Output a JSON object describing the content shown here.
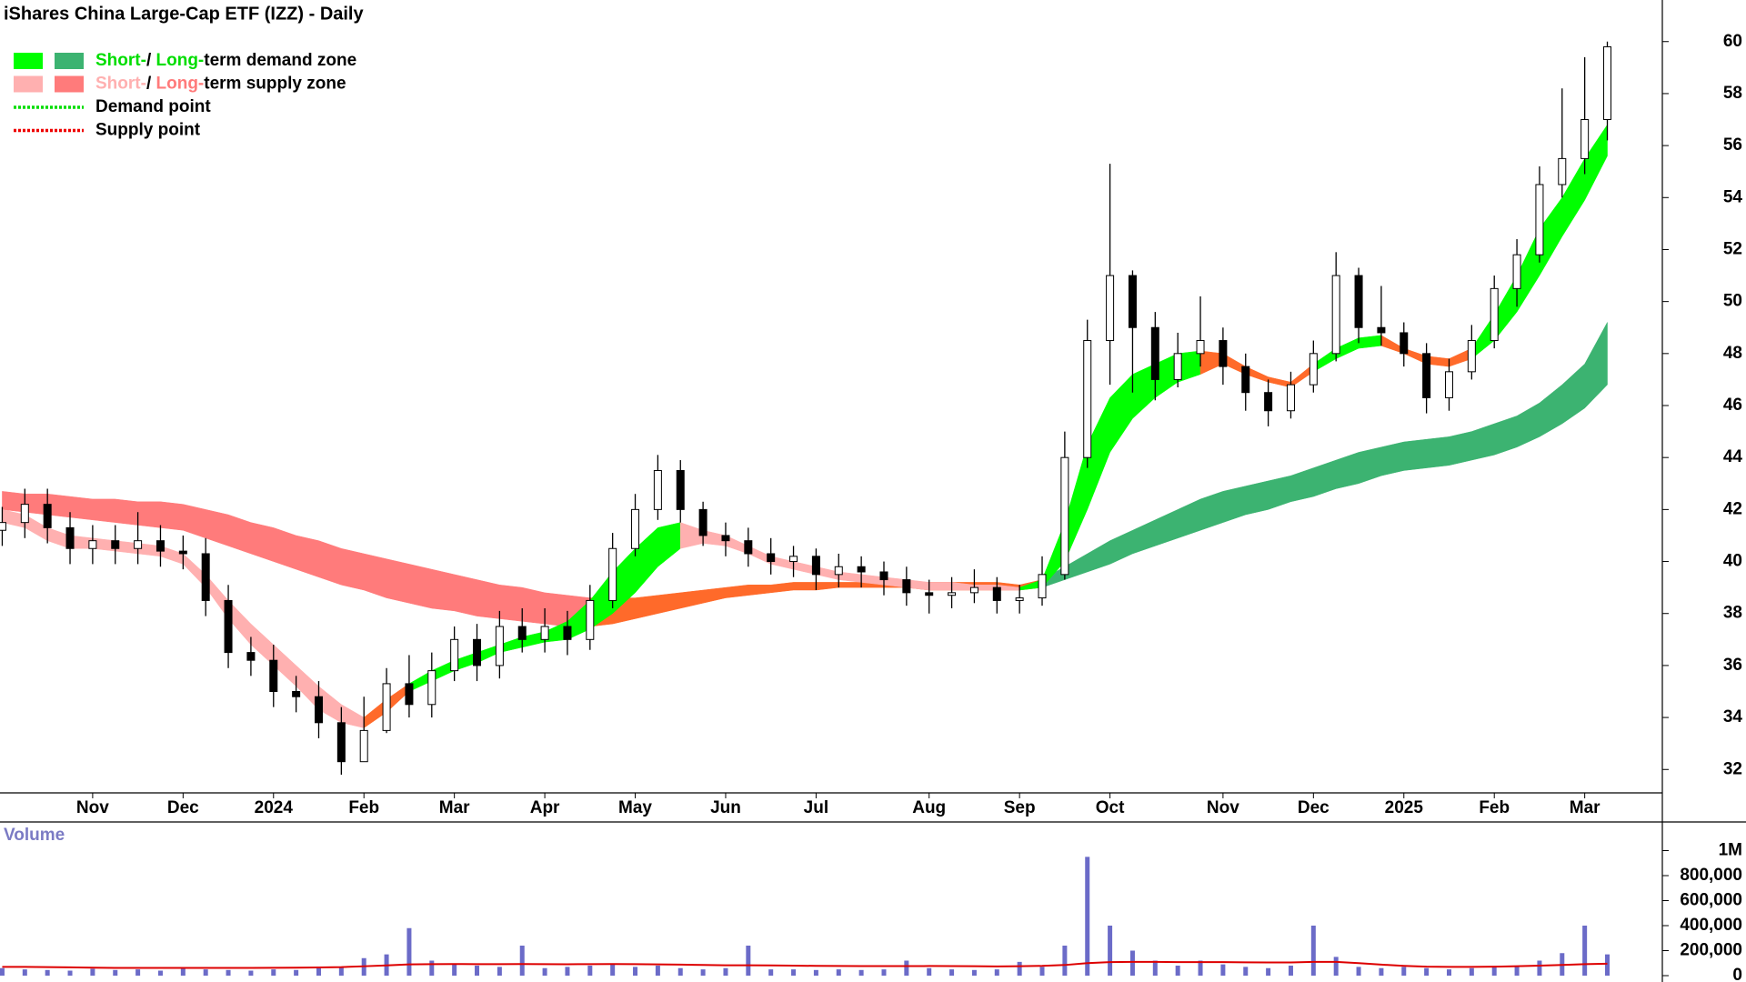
{
  "chart_data": [
    {
      "type": "candlestick",
      "title": "iShares China Large-Cap ETF (IZZ) - Daily",
      "categories": [
        null,
        null,
        null,
        null,
        "Nov",
        null,
        null,
        null,
        "Dec",
        null,
        null,
        null,
        "2024",
        null,
        null,
        null,
        "Feb",
        null,
        null,
        null,
        "Mar",
        null,
        null,
        null,
        "Apr",
        null,
        null,
        null,
        "May",
        null,
        null,
        null,
        "Jun",
        null,
        null,
        null,
        "Jul",
        null,
        null,
        null,
        null,
        "Aug",
        null,
        null,
        null,
        "Sep",
        null,
        null,
        null,
        "Oct",
        null,
        null,
        null,
        null,
        "Nov",
        null,
        null,
        null,
        "Dec",
        null,
        null,
        null,
        "2025",
        null,
        null,
        null,
        "Feb",
        null,
        null,
        null,
        "Mar",
        null
      ],
      "open": [
        41.2,
        41.5,
        42.2,
        41.3,
        40.5,
        40.8,
        40.5,
        40.8,
        40.4,
        40.3,
        38.5,
        36.5,
        36.2,
        35.0,
        34.8,
        33.8,
        32.3,
        33.5,
        35.3,
        34.5,
        35.8,
        37.0,
        36.0,
        37.5,
        37.0,
        37.5,
        37.0,
        38.5,
        40.5,
        42.0,
        43.5,
        42.0,
        41.0,
        40.8,
        40.3,
        40.0,
        40.2,
        39.5,
        39.8,
        39.6,
        39.3,
        38.8,
        38.7,
        38.8,
        39.0,
        38.5,
        38.6,
        39.5,
        44.0,
        48.5,
        51.0,
        49.0,
        47.0,
        48.0,
        48.5,
        47.5,
        46.5,
        45.8,
        46.8,
        48.0,
        51.0,
        49.0,
        48.8,
        48.0,
        46.3,
        47.3,
        48.5,
        50.5,
        51.8,
        54.5,
        55.5,
        57.0
      ],
      "high": [
        42.1,
        42.8,
        42.8,
        41.9,
        41.4,
        41.4,
        41.9,
        41.4,
        41.0,
        40.9,
        39.1,
        37.1,
        36.8,
        35.6,
        35.4,
        34.4,
        34.8,
        35.9,
        36.4,
        36.5,
        37.5,
        37.6,
        38.1,
        38.2,
        38.2,
        38.1,
        39.1,
        41.1,
        42.6,
        44.1,
        43.9,
        42.3,
        41.5,
        41.3,
        40.9,
        40.6,
        40.5,
        40.3,
        40.2,
        40.0,
        39.8,
        39.3,
        39.4,
        39.7,
        39.4,
        39.1,
        40.2,
        45.0,
        49.3,
        55.3,
        51.2,
        49.6,
        48.8,
        50.2,
        49.0,
        48.0,
        47.0,
        47.3,
        48.5,
        51.9,
        51.3,
        50.6,
        49.2,
        48.4,
        47.8,
        49.1,
        51.0,
        52.4,
        55.2,
        58.2,
        59.4,
        60.0
      ],
      "low": [
        40.6,
        40.9,
        40.7,
        39.9,
        39.9,
        39.9,
        39.9,
        39.8,
        39.7,
        37.9,
        35.9,
        35.6,
        34.4,
        34.2,
        33.2,
        31.8,
        32.6,
        33.4,
        34.0,
        34.0,
        35.4,
        35.4,
        35.5,
        36.5,
        36.5,
        36.4,
        36.6,
        38.2,
        40.2,
        41.6,
        41.5,
        40.6,
        40.2,
        39.8,
        39.5,
        39.4,
        38.9,
        39.0,
        39.0,
        38.7,
        38.3,
        38.0,
        38.2,
        38.4,
        38.0,
        38.0,
        38.3,
        39.3,
        43.6,
        46.8,
        46.5,
        46.2,
        46.7,
        47.5,
        46.8,
        45.8,
        45.2,
        45.5,
        46.5,
        47.7,
        48.4,
        48.3,
        47.5,
        45.7,
        45.8,
        47.0,
        48.2,
        49.8,
        51.5,
        54.0,
        54.9,
        56.2
      ],
      "close": [
        41.5,
        42.2,
        41.3,
        40.5,
        40.8,
        40.5,
        40.8,
        40.4,
        40.3,
        38.5,
        36.5,
        36.2,
        35.0,
        34.8,
        33.8,
        32.3,
        33.5,
        35.3,
        34.5,
        35.8,
        37.0,
        36.0,
        37.5,
        37.0,
        37.5,
        37.0,
        38.5,
        40.5,
        42.0,
        43.5,
        42.0,
        41.0,
        40.8,
        40.3,
        40.0,
        40.2,
        39.5,
        39.8,
        39.6,
        39.3,
        38.8,
        38.7,
        38.8,
        39.0,
        38.5,
        38.6,
        39.5,
        44.0,
        48.5,
        51.0,
        49.0,
        47.0,
        48.0,
        48.5,
        47.5,
        46.5,
        45.8,
        46.8,
        48.0,
        51.0,
        49.0,
        48.8,
        48.0,
        46.3,
        47.3,
        48.5,
        50.5,
        51.8,
        54.5,
        55.5,
        57.0,
        59.8
      ],
      "up_color": "#ffffff",
      "down_color": "#000000",
      "bands": [
        {
          "upper": [
            42.7,
            42.6,
            42.6,
            42.5,
            42.4,
            42.4,
            42.3,
            42.3,
            42.2,
            42.0,
            41.8,
            41.5,
            41.3,
            41.0,
            40.8,
            40.5,
            40.3,
            40.1,
            39.9,
            39.7,
            39.5,
            39.3,
            39.1,
            39.0,
            38.8,
            38.7,
            38.6,
            38.6,
            38.6,
            38.7,
            38.8,
            38.9,
            39.0,
            39.1,
            39.1,
            39.2,
            39.2,
            39.2,
            39.2,
            39.2,
            39.2,
            39.2,
            39.2,
            39.2,
            39.2,
            39.1,
            39.3,
            39.8,
            40.3,
            40.8,
            41.2,
            41.6,
            42.0,
            42.4,
            42.7,
            42.9,
            43.1,
            43.3,
            43.6,
            43.9,
            44.2,
            44.4,
            44.6,
            44.7,
            44.8,
            45.0,
            45.3,
            45.6,
            46.1,
            46.8,
            47.6,
            49.2
          ],
          "lower": [
            42.0,
            41.9,
            41.8,
            41.7,
            41.6,
            41.5,
            41.4,
            41.3,
            41.2,
            40.9,
            40.6,
            40.3,
            40.0,
            39.7,
            39.4,
            39.1,
            38.9,
            38.6,
            38.4,
            38.2,
            38.1,
            37.9,
            37.8,
            37.7,
            37.6,
            37.5,
            37.5,
            37.6,
            37.8,
            38.0,
            38.2,
            38.4,
            38.6,
            38.7,
            38.8,
            38.9,
            38.9,
            39.0,
            39.0,
            39.0,
            39.0,
            38.9,
            38.9,
            38.9,
            38.9,
            38.9,
            39.0,
            39.3,
            39.6,
            39.9,
            40.3,
            40.6,
            40.9,
            41.2,
            41.5,
            41.8,
            42.0,
            42.3,
            42.5,
            42.8,
            43.0,
            43.3,
            43.5,
            43.6,
            43.7,
            43.9,
            44.1,
            44.4,
            44.8,
            45.3,
            45.9,
            46.8
          ],
          "segments": [
            {
              "start": 0,
              "end": 26,
              "color": "#ff7b7b"
            },
            {
              "start": 26,
              "end": 46,
              "color": "#ff6a2a"
            },
            {
              "start": 46,
              "end": 71,
              "color": "#3cb371"
            }
          ]
        },
        {
          "upper": [
            42.0,
            41.8,
            41.3,
            41.0,
            40.9,
            40.8,
            40.7,
            40.6,
            40.3,
            39.5,
            38.5,
            37.6,
            36.8,
            36.0,
            35.2,
            34.5,
            34.0,
            34.7,
            35.3,
            35.8,
            36.2,
            36.5,
            36.8,
            37.1,
            37.3,
            37.7,
            38.5,
            39.6,
            40.5,
            41.3,
            41.5,
            41.2,
            41.0,
            40.6,
            40.2,
            40.0,
            39.8,
            39.6,
            39.5,
            39.4,
            39.3,
            39.2,
            39.2,
            39.1,
            39.1,
            39.0,
            39.3,
            41.5,
            44.5,
            46.3,
            47.2,
            47.6,
            48.0,
            48.1,
            48.0,
            47.5,
            47.1,
            46.9,
            47.6,
            48.2,
            48.6,
            48.7,
            48.2,
            47.9,
            47.8,
            48.2,
            49.5,
            51.0,
            52.8,
            54.0,
            55.5,
            56.8
          ],
          "lower": [
            41.5,
            41.3,
            40.8,
            40.5,
            40.5,
            40.4,
            40.3,
            40.2,
            39.9,
            39.0,
            37.8,
            36.8,
            36.0,
            35.2,
            34.3,
            33.8,
            33.6,
            34.2,
            35.0,
            35.4,
            35.8,
            36.1,
            36.5,
            36.7,
            36.9,
            37.0,
            37.4,
            38.0,
            38.8,
            39.8,
            40.5,
            40.7,
            40.6,
            40.3,
            39.9,
            39.7,
            39.5,
            39.3,
            39.2,
            39.1,
            39.0,
            38.9,
            38.9,
            38.9,
            38.9,
            38.9,
            39.0,
            40.0,
            42.0,
            44.2,
            45.5,
            46.3,
            46.9,
            47.2,
            47.6,
            47.2,
            46.9,
            46.7,
            47.3,
            47.8,
            48.2,
            48.3,
            48.0,
            47.6,
            47.5,
            47.8,
            48.5,
            49.6,
            51.0,
            52.5,
            53.9,
            55.6
          ],
          "segments": [
            {
              "start": 0,
              "end": 16,
              "color": "#ffb0b0"
            },
            {
              "start": 16,
              "end": 18,
              "color": "#ff6a2a"
            },
            {
              "start": 18,
              "end": 30,
              "color": "#00ff00"
            },
            {
              "start": 30,
              "end": 45,
              "color": "#ffb0b0"
            },
            {
              "start": 45,
              "end": 53,
              "color": "#00ff00"
            },
            {
              "start": 53,
              "end": 58,
              "color": "#ff6a2a"
            },
            {
              "start": 58,
              "end": 61,
              "color": "#00ff00"
            },
            {
              "start": 61,
              "end": 65,
              "color": "#ff6a2a"
            },
            {
              "start": 65,
              "end": 71,
              "color": "#00ff00"
            }
          ]
        }
      ],
      "ylim": [
        31.1,
        61.6
      ],
      "yticks": [
        32,
        34,
        36,
        38,
        40,
        42,
        44,
        46,
        48,
        50,
        52,
        54,
        56,
        58,
        60
      ],
      "legend": [
        {
          "swatches": [
            "#00ff00",
            "#3cb371"
          ],
          "parts": [
            {
              "text": "Short-",
              "color": "#00dd00"
            },
            {
              "text": "/ ",
              "color": "#000000"
            },
            {
              "text": "Long-",
              "color": "#00dd00"
            },
            {
              "text": "term demand zone",
              "color": "#000000"
            }
          ]
        },
        {
          "swatches": [
            "#ffb0b0",
            "#ff7b7b"
          ],
          "parts": [
            {
              "text": "Short-",
              "color": "#ffb0b0"
            },
            {
              "text": "/ ",
              "color": "#000000"
            },
            {
              "text": "Long-",
              "color": "#ff7b7b"
            },
            {
              "text": "term supply zone",
              "color": "#000000"
            }
          ]
        },
        {
          "line": "#00dd00",
          "parts": [
            {
              "text": "Demand point",
              "color": "#000000"
            }
          ]
        },
        {
          "line": "#ee0000",
          "parts": [
            {
              "text": "Supply point",
              "color": "#000000"
            }
          ]
        }
      ]
    },
    {
      "type": "bar",
      "title": "Volume",
      "color": "#6b6bc8",
      "values": [
        60000,
        50000,
        45000,
        40000,
        55000,
        45000,
        50000,
        40000,
        60000,
        50000,
        45000,
        40000,
        50000,
        45000,
        60000,
        70000,
        140000,
        170000,
        380000,
        120000,
        90000,
        80000,
        70000,
        240000,
        60000,
        70000,
        80000,
        90000,
        70000,
        80000,
        60000,
        50000,
        60000,
        240000,
        50000,
        50000,
        45000,
        50000,
        45000,
        50000,
        120000,
        60000,
        50000,
        45000,
        50000,
        110000,
        70000,
        240000,
        950000,
        400000,
        200000,
        120000,
        80000,
        120000,
        90000,
        70000,
        60000,
        80000,
        400000,
        150000,
        70000,
        60000,
        70000,
        60000,
        50000,
        60000,
        70000,
        80000,
        120000,
        180000,
        400000,
        170000
      ],
      "average": {
        "color": "#dd0000",
        "values": [
          70000,
          70000,
          68000,
          66000,
          64000,
          62000,
          62000,
          62000,
          62000,
          62000,
          62000,
          62000,
          63000,
          64000,
          65000,
          68000,
          75000,
          82000,
          90000,
          92000,
          93000,
          92000,
          92000,
          93000,
          92000,
          91000,
          92000,
          93000,
          92000,
          90000,
          88000,
          85000,
          83000,
          83000,
          82000,
          80000,
          78000,
          77000,
          76000,
          76000,
          76000,
          77000,
          76000,
          75000,
          74000,
          75000,
          78000,
          85000,
          100000,
          108000,
          110000,
          110000,
          108000,
          108000,
          108000,
          106000,
          105000,
          105000,
          110000,
          110000,
          100000,
          88000,
          78000,
          72000,
          70000,
          70000,
          72000,
          75000,
          80000,
          85000,
          92000,
          95000
        ]
      },
      "ylim": [
        0,
        1229000
      ],
      "yticks": [
        0,
        {
          "value": 200000,
          "label": "200,000"
        },
        {
          "value": 400000,
          "label": "400,000"
        },
        {
          "value": 600000,
          "label": "600,000"
        },
        {
          "value": 800000,
          "label": "800,000"
        },
        {
          "value": 1000000,
          "label": "1M"
        }
      ]
    }
  ]
}
